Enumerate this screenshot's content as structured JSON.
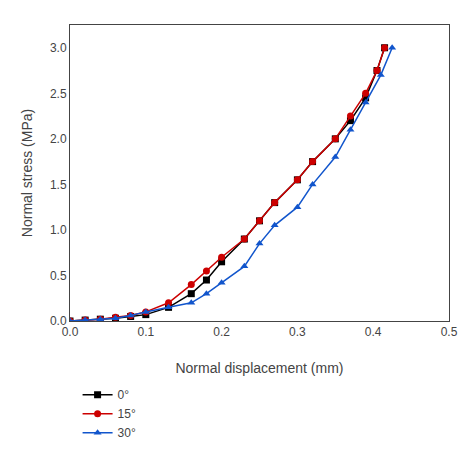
{
  "chart_data": {
    "type": "line",
    "xlabel": "Normal displacement (mm)",
    "ylabel": "Normal stress (MPa)",
    "xlim": [
      0.0,
      0.5
    ],
    "ylim": [
      0.0,
      3.25
    ],
    "xticks": [
      {
        "value": 0.0,
        "label": "0.0"
      },
      0.1,
      0.2,
      0.3,
      0.4,
      0.5
    ],
    "yticks": [
      {
        "value": 0.0,
        "label": "0.0"
      },
      0.5,
      {
        "value": 1.0,
        "label": "1.0"
      },
      1.5,
      {
        "value": 2.0,
        "label": "2.0"
      },
      2.5,
      {
        "value": 3.0,
        "label": "3.0"
      }
    ],
    "grid": false,
    "legend": "below",
    "series": [
      {
        "name": "0°",
        "color": "#000000",
        "marker": "square",
        "x": [
          0.0,
          0.02,
          0.04,
          0.06,
          0.08,
          0.1,
          0.13,
          0.16,
          0.18,
          0.2,
          0.23,
          0.25,
          0.27,
          0.3,
          0.32,
          0.35,
          0.37,
          0.39,
          0.405,
          0.415
        ],
        "values": [
          0.0,
          0.01,
          0.02,
          0.03,
          0.05,
          0.07,
          0.15,
          0.3,
          0.45,
          0.65,
          0.9,
          1.1,
          1.3,
          1.55,
          1.75,
          2.0,
          2.2,
          2.45,
          2.75,
          3.0
        ]
      },
      {
        "name": "15°",
        "color": "#cc0000",
        "marker": "circle",
        "x": [
          0.0,
          0.02,
          0.04,
          0.06,
          0.08,
          0.1,
          0.13,
          0.16,
          0.18,
          0.2,
          0.23,
          0.25,
          0.27,
          0.3,
          0.32,
          0.35,
          0.37,
          0.39,
          0.405,
          0.415
        ],
        "values": [
          0.0,
          0.01,
          0.02,
          0.04,
          0.06,
          0.1,
          0.2,
          0.4,
          0.55,
          0.7,
          0.9,
          1.1,
          1.3,
          1.55,
          1.75,
          2.0,
          2.25,
          2.5,
          2.75,
          3.0
        ]
      },
      {
        "name": "30°",
        "color": "#1155cc",
        "marker": "triangle-up",
        "x": [
          0.0,
          0.02,
          0.04,
          0.06,
          0.08,
          0.1,
          0.13,
          0.16,
          0.18,
          0.2,
          0.23,
          0.25,
          0.27,
          0.3,
          0.32,
          0.35,
          0.37,
          0.39,
          0.41,
          0.425
        ],
        "values": [
          0.0,
          0.01,
          0.02,
          0.03,
          0.06,
          0.1,
          0.15,
          0.2,
          0.3,
          0.42,
          0.6,
          0.85,
          1.05,
          1.25,
          1.5,
          1.8,
          2.1,
          2.4,
          2.7,
          3.0
        ]
      }
    ]
  }
}
